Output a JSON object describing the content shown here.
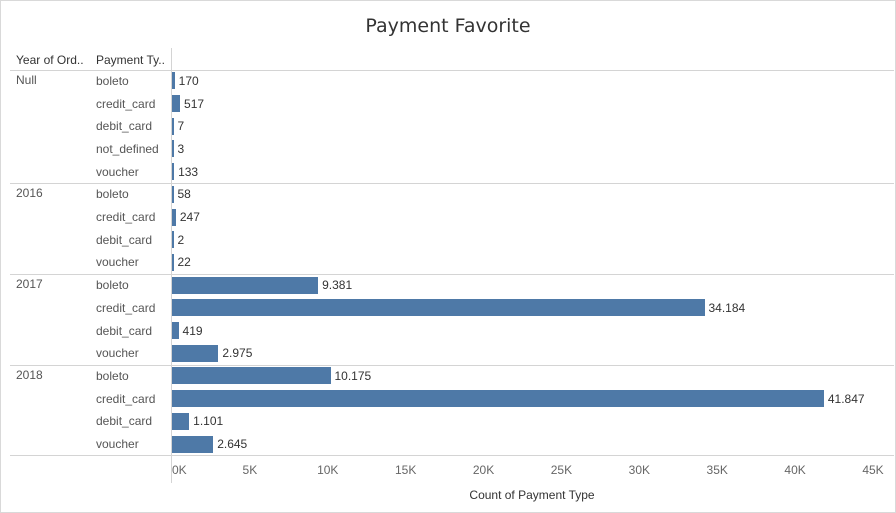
{
  "chart_data": {
    "type": "bar",
    "orientation": "horizontal",
    "title": "Payment Favorite",
    "row_headers": [
      "Year of Ord..",
      "Payment Ty.."
    ],
    "xlabel": "Count of Payment Type",
    "xlim": [
      0,
      45000
    ],
    "x_ticks": [
      0,
      5000,
      10000,
      15000,
      20000,
      25000,
      30000,
      35000,
      40000,
      45000
    ],
    "x_tick_labels": [
      "0K",
      "5K",
      "10K",
      "15K",
      "20K",
      "25K",
      "30K",
      "35K",
      "40K",
      "45K"
    ],
    "groups": [
      {
        "name": "Null",
        "rows": [
          {
            "category": "boleto",
            "value": 170,
            "label": "170"
          },
          {
            "category": "credit_card",
            "value": 517,
            "label": "517"
          },
          {
            "category": "debit_card",
            "value": 7,
            "label": "7"
          },
          {
            "category": "not_defined",
            "value": 3,
            "label": "3"
          },
          {
            "category": "voucher",
            "value": 133,
            "label": "133"
          }
        ]
      },
      {
        "name": "2016",
        "rows": [
          {
            "category": "boleto",
            "value": 58,
            "label": "58"
          },
          {
            "category": "credit_card",
            "value": 247,
            "label": "247"
          },
          {
            "category": "debit_card",
            "value": 2,
            "label": "2"
          },
          {
            "category": "voucher",
            "value": 22,
            "label": "22"
          }
        ]
      },
      {
        "name": "2017",
        "rows": [
          {
            "category": "boleto",
            "value": 9381,
            "label": "9.381"
          },
          {
            "category": "credit_card",
            "value": 34184,
            "label": "34.184"
          },
          {
            "category": "debit_card",
            "value": 419,
            "label": "419"
          },
          {
            "category": "voucher",
            "value": 2975,
            "label": "2.975"
          }
        ]
      },
      {
        "name": "2018",
        "rows": [
          {
            "category": "boleto",
            "value": 10175,
            "label": "10.175"
          },
          {
            "category": "credit_card",
            "value": 41847,
            "label": "41.847"
          },
          {
            "category": "debit_card",
            "value": 1101,
            "label": "1.101"
          },
          {
            "category": "voucher",
            "value": 2645,
            "label": "2.645"
          }
        ]
      }
    ],
    "bar_color": "#4e79a7",
    "grid": false,
    "legend": "none"
  }
}
